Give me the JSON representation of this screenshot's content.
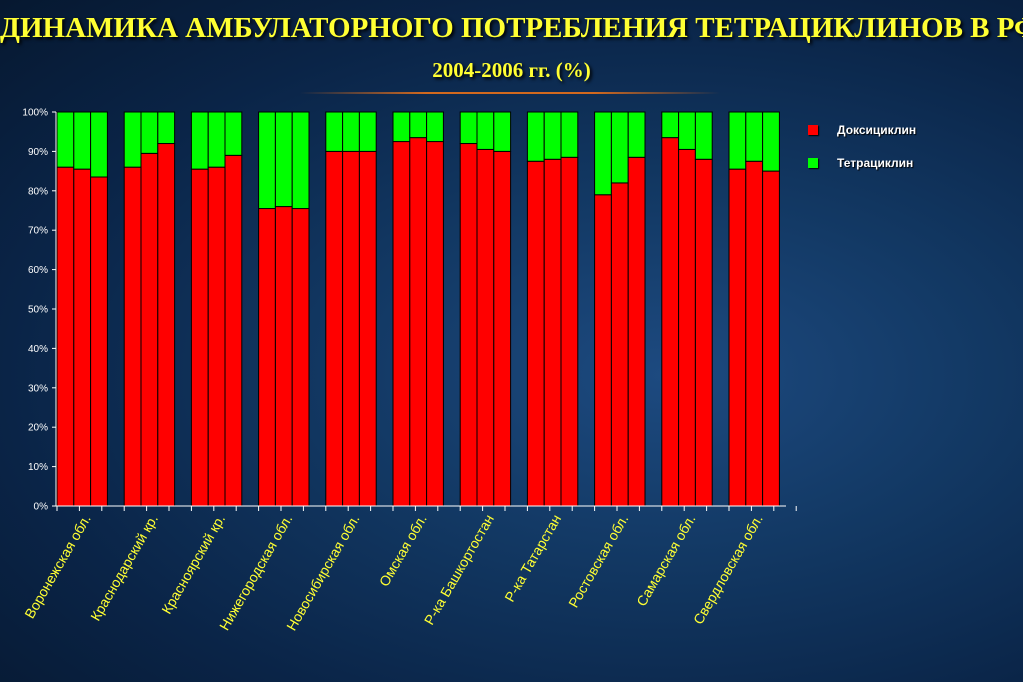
{
  "title": "ДИНАМИКА АМБУЛАТОРНОГО ПОТРЕБЛЕНИЯ ТЕТРАЦИКЛИНОВ В РФ В",
  "subtitle": "2004-2006 гг. (%)",
  "colors": {
    "accent": "#ffff33",
    "doxy": "#ff0000",
    "tetra": "#00ff00"
  },
  "chart_data": {
    "type": "bar",
    "stacked": true,
    "percent": true,
    "categories": [
      "Воронежская обл.",
      "Краснодарский кр.",
      "Красноярский кр.",
      "Нижегородская обл.",
      "Новосибирская обл.",
      "Омская обл.",
      "Р-ка Башкортостан",
      "Р-ка Татарстан",
      "Ростовская обл.",
      "Самарская обл.",
      "Свердловская обл."
    ],
    "bars_per_category": 3,
    "yticks": [
      "0%",
      "10%",
      "20%",
      "30%",
      "40%",
      "50%",
      "60%",
      "70%",
      "80%",
      "90%",
      "100%"
    ],
    "ylim": [
      0,
      100
    ],
    "legend_position": "right",
    "series": [
      {
        "name": "Доксициклин",
        "color": "#ff0000",
        "values": [
          [
            86,
            85.5,
            83.5
          ],
          [
            86,
            89.5,
            92
          ],
          [
            85.5,
            86,
            89
          ],
          [
            75.5,
            76,
            75.5
          ],
          [
            90,
            90,
            90
          ],
          [
            92.5,
            93.5,
            92.5
          ],
          [
            92,
            90.5,
            90
          ],
          [
            87.5,
            88,
            88.5
          ],
          [
            79,
            82,
            88.5
          ],
          [
            93.5,
            90.5,
            88
          ],
          [
            85.5,
            87.5,
            85
          ]
        ]
      },
      {
        "name": "Тетрациклин",
        "color": "#00ff00",
        "values": [
          [
            14,
            14.5,
            16.5
          ],
          [
            14,
            10.5,
            8
          ],
          [
            14.5,
            14,
            11
          ],
          [
            24.5,
            24,
            24.5
          ],
          [
            10,
            10,
            10
          ],
          [
            7.5,
            6.5,
            7.5
          ],
          [
            8,
            9.5,
            10
          ],
          [
            12.5,
            12,
            11.5
          ],
          [
            21,
            18,
            11.5
          ],
          [
            6.5,
            9.5,
            12
          ],
          [
            14.5,
            12.5,
            15
          ]
        ]
      }
    ]
  }
}
